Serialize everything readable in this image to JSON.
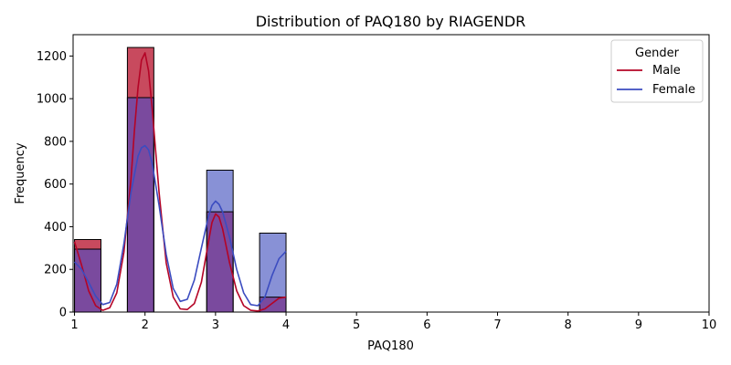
{
  "chart_data": {
    "type": "bar",
    "title": "Distribution of PAQ180 by RIAGENDR",
    "xlabel": "PAQ180",
    "ylabel": "Frequency",
    "xlim": [
      0.98,
      10
    ],
    "ylim": [
      0,
      1300
    ],
    "xticks": [
      1,
      2,
      3,
      4,
      5,
      6,
      7,
      8,
      9,
      10
    ],
    "yticks": [
      0,
      200,
      400,
      600,
      800,
      1000,
      1200
    ],
    "bin_edges": [
      1.0,
      1.375,
      1.75,
      2.125,
      2.5,
      2.875,
      3.25,
      3.625,
      4.0
    ],
    "legend_title": "Gender",
    "legend_position": "top-right",
    "grid": false,
    "series": [
      {
        "name": "Male",
        "color": "#b40426",
        "bar_fill": "#c84a5e",
        "values": [
          340,
          0,
          1240,
          0,
          0,
          470,
          0,
          70
        ]
      },
      {
        "name": "Female",
        "color": "#3b4cc0",
        "bar_fill": "#8891d6",
        "values": [
          295,
          0,
          1005,
          0,
          0,
          665,
          0,
          370
        ]
      }
    ],
    "overlap_fill": "#7a4a9e",
    "kde": [
      {
        "name": "Male",
        "x": [
          1.0,
          1.1,
          1.2,
          1.3,
          1.4,
          1.5,
          1.6,
          1.7,
          1.8,
          1.85,
          1.9,
          1.95,
          2.0,
          2.05,
          2.1,
          2.2,
          2.3,
          2.4,
          2.5,
          2.6,
          2.7,
          2.8,
          2.9,
          2.95,
          3.0,
          3.05,
          3.1,
          3.2,
          3.3,
          3.4,
          3.5,
          3.6,
          3.7,
          3.8,
          3.9,
          4.0
        ],
        "y": [
          330,
          220,
          100,
          30,
          8,
          20,
          90,
          280,
          620,
          850,
          1050,
          1180,
          1215,
          1130,
          960,
          560,
          230,
          70,
          15,
          12,
          40,
          140,
          330,
          420,
          460,
          445,
          390,
          230,
          100,
          30,
          8,
          5,
          15,
          40,
          65,
          70
        ]
      },
      {
        "name": "Female",
        "x": [
          1.0,
          1.1,
          1.2,
          1.3,
          1.4,
          1.5,
          1.6,
          1.7,
          1.8,
          1.9,
          1.95,
          2.0,
          2.05,
          2.1,
          2.2,
          2.3,
          2.4,
          2.5,
          2.6,
          2.7,
          2.8,
          2.9,
          2.95,
          3.0,
          3.05,
          3.1,
          3.2,
          3.3,
          3.4,
          3.5,
          3.6,
          3.7,
          3.8,
          3.9,
          4.0
        ],
        "y": [
          235,
          200,
          140,
          75,
          35,
          45,
          130,
          320,
          560,
          730,
          770,
          780,
          760,
          700,
          500,
          270,
          110,
          50,
          60,
          150,
          300,
          450,
          500,
          520,
          505,
          470,
          350,
          200,
          90,
          35,
          30,
          70,
          170,
          250,
          285
        ]
      }
    ]
  }
}
